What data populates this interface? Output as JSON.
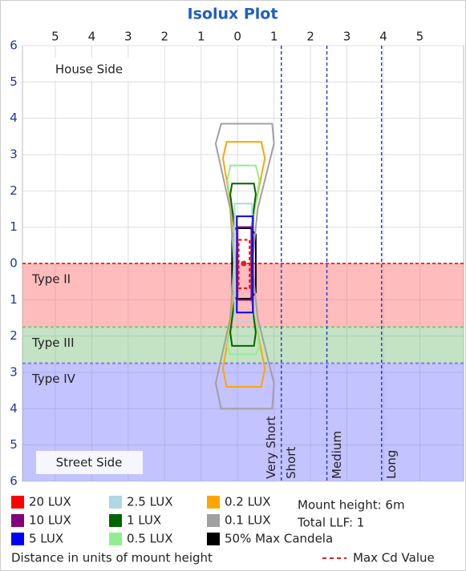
{
  "chart_data": {
    "type": "isolux",
    "title": "Isolux Plot",
    "xlim": [
      -5.9,
      6.2
    ],
    "ylim": [
      -6,
      6
    ],
    "xticks": [
      {
        "value": -5,
        "label": "5"
      },
      {
        "value": -4,
        "label": "4"
      },
      {
        "value": -3,
        "label": "3"
      },
      {
        "value": -2,
        "label": "2"
      },
      {
        "value": -1,
        "label": "1"
      },
      0,
      1,
      2,
      3,
      4,
      5
    ],
    "yticks": [
      {
        "value": -6,
        "label": "6"
      },
      {
        "value": -5,
        "label": "5"
      },
      {
        "value": -4,
        "label": "4"
      },
      {
        "value": -3,
        "label": "3"
      },
      {
        "value": -2,
        "label": "2"
      },
      {
        "value": -1,
        "label": "1"
      },
      0,
      1,
      2,
      3,
      4,
      5,
      6
    ],
    "grid": true,
    "side_labels": {
      "top": "House Side",
      "bottom": "Street Side"
    },
    "bands": [
      {
        "name": "Type II",
        "from": 0,
        "to": -1.75,
        "color": "#ff6b6b"
      },
      {
        "name": "Type III",
        "from": -1.75,
        "to": -2.75,
        "color": "#7cc27c"
      },
      {
        "name": "Type IV",
        "from": -2.75,
        "to": -6,
        "color": "#7b7bff"
      }
    ],
    "distance_lines": [
      {
        "name": "Very Short",
        "x": null
      },
      {
        "name": "Short",
        "x": 1.2
      },
      {
        "name": "Medium",
        "x": 2.45
      },
      {
        "name": "Long",
        "x": 3.95
      }
    ],
    "contours": [
      {
        "name": "20 LUX",
        "color": "#ff0000",
        "dashed": true,
        "x": [
          0.03,
          0.33,
          0.33,
          0.03
        ],
        "y": [
          0.65,
          0.65,
          -0.68,
          -0.68
        ]
      },
      {
        "name": "10 LUX",
        "color": "#800080",
        "x": [
          0.0,
          0.38,
          0.38,
          0.0
        ],
        "y": [
          1.0,
          1.0,
          -1.0,
          -1.0
        ]
      },
      {
        "name": "5 LUX",
        "color": "#0000ff",
        "x": [
          -0.02,
          0.42,
          0.42,
          -0.02
        ],
        "y": [
          1.3,
          1.3,
          -1.35,
          -1.35
        ]
      },
      {
        "name": "2.5 LUX",
        "color": "#add8e6",
        "x": [
          -0.08,
          0.4,
          0.4,
          -0.08
        ],
        "y": [
          1.65,
          1.65,
          -1.6,
          -1.6
        ]
      },
      {
        "name": "1 LUX",
        "color": "#006400",
        "x": [
          -0.15,
          0.45,
          0.5,
          0.38,
          0.38,
          0.5,
          0.45,
          -0.15,
          -0.2,
          -0.08,
          -0.08,
          -0.2
        ],
        "y": [
          2.2,
          2.2,
          1.9,
          1.0,
          -1.0,
          -1.9,
          -2.27,
          -2.27,
          -1.9,
          -1.0,
          1.0,
          1.9
        ]
      },
      {
        "name": "0.5 LUX",
        "color": "#90ee90",
        "x": [
          -0.2,
          0.5,
          0.6,
          0.42,
          0.42,
          0.6,
          0.5,
          -0.2,
          -0.28,
          -0.1,
          -0.1,
          -0.28
        ],
        "y": [
          2.7,
          2.7,
          2.3,
          1.2,
          -1.2,
          -2.3,
          -2.5,
          -2.5,
          -2.3,
          -1.2,
          1.2,
          2.3
        ]
      },
      {
        "name": "0.2 LUX",
        "color": "#ffa500",
        "x": [
          -0.3,
          0.65,
          0.75,
          0.45,
          0.35,
          0.45,
          0.75,
          0.65,
          -0.3,
          -0.4,
          -0.15,
          -0.05,
          -0.15,
          -0.4
        ],
        "y": [
          3.35,
          3.35,
          2.9,
          1.4,
          0,
          -1.4,
          -2.9,
          -3.4,
          -3.4,
          -2.9,
          -1.4,
          0,
          1.4,
          2.9
        ]
      },
      {
        "name": "0.1 LUX",
        "color": "#a0a0a0",
        "x": [
          -0.45,
          0.95,
          1.0,
          0.55,
          0.4,
          0.55,
          1.0,
          0.95,
          -0.45,
          -0.6,
          -0.2,
          -0.1,
          -0.2,
          -0.6
        ],
        "y": [
          3.85,
          3.85,
          3.3,
          1.5,
          0,
          -1.5,
          -3.3,
          -4.0,
          -4.0,
          -3.3,
          -1.5,
          0,
          1.5,
          3.3
        ]
      },
      {
        "name": "50% Max Candela",
        "color": "#000000",
        "x": [
          -0.05,
          0.35,
          0.5,
          0.5,
          0.35,
          -0.05,
          -0.15,
          -0.15
        ],
        "y": [
          0.97,
          0.97,
          0.8,
          -0.8,
          -0.97,
          -0.97,
          -0.8,
          0.8
        ]
      }
    ],
    "max_cd": {
      "name": "Max Cd Value",
      "x": 0.17,
      "y": 0,
      "color": "#e02020"
    },
    "notes": [
      "Mount height: 6m",
      "Total LLF: 1"
    ],
    "footer": "Distance in units of mount height"
  }
}
